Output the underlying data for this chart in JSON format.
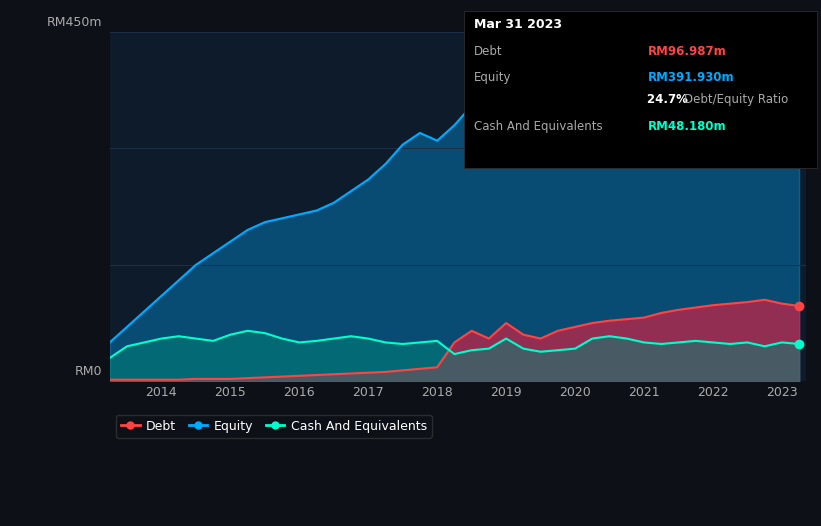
{
  "background_color": "#0d1117",
  "plot_bg_color": "#0d1b2a",
  "grid_color": "#1e3048",
  "ylim": [
    0,
    450
  ],
  "ylabel_rm0": "RM0",
  "ylabel_rm450": "RM450m",
  "years": [
    2013.25,
    2013.5,
    2013.75,
    2014.0,
    2014.25,
    2014.5,
    2014.75,
    2015.0,
    2015.25,
    2015.5,
    2015.75,
    2016.0,
    2016.25,
    2016.5,
    2016.75,
    2017.0,
    2017.25,
    2017.5,
    2017.75,
    2018.0,
    2018.25,
    2018.5,
    2018.75,
    2019.0,
    2019.25,
    2019.5,
    2019.75,
    2020.0,
    2020.25,
    2020.5,
    2020.75,
    2021.0,
    2021.25,
    2021.5,
    2021.75,
    2022.0,
    2022.25,
    2022.5,
    2022.75,
    2023.0,
    2023.25
  ],
  "equity": [
    50,
    70,
    90,
    110,
    130,
    150,
    165,
    180,
    195,
    205,
    210,
    215,
    220,
    230,
    245,
    260,
    280,
    305,
    320,
    310,
    330,
    355,
    360,
    340,
    355,
    365,
    370,
    375,
    380,
    385,
    390,
    410,
    430,
    445,
    440,
    430,
    415,
    410,
    405,
    400,
    392
  ],
  "debt": [
    2,
    2,
    2,
    2,
    2,
    3,
    3,
    3,
    4,
    5,
    6,
    7,
    8,
    9,
    10,
    11,
    12,
    14,
    16,
    18,
    50,
    65,
    55,
    75,
    60,
    55,
    65,
    70,
    75,
    78,
    80,
    82,
    88,
    92,
    95,
    98,
    100,
    102,
    105,
    100,
    97
  ],
  "cash": [
    30,
    45,
    50,
    55,
    58,
    55,
    52,
    60,
    65,
    62,
    55,
    50,
    52,
    55,
    58,
    55,
    50,
    48,
    50,
    52,
    35,
    40,
    42,
    55,
    42,
    38,
    40,
    42,
    55,
    58,
    55,
    50,
    48,
    50,
    52,
    50,
    48,
    50,
    45,
    50,
    48
  ],
  "equity_color": "#00aaff",
  "debt_color": "#ff4444",
  "cash_color": "#00ffcc",
  "equity_fill": "#00aaff",
  "debt_fill": "#cc2244",
  "cash_fill": "#008877",
  "xticks": [
    2014,
    2015,
    2016,
    2017,
    2018,
    2019,
    2020,
    2021,
    2022,
    2023
  ],
  "legend_items": [
    {
      "label": "Debt",
      "color": "#ff4444"
    },
    {
      "label": "Equity",
      "color": "#00aaff"
    },
    {
      "label": "Cash And Equivalents",
      "color": "#00ffcc"
    }
  ],
  "tooltip": {
    "date": "Mar 31 2023",
    "debt_label": "Debt",
    "debt_value": "RM96.987m",
    "debt_color": "#ff4444",
    "equity_label": "Equity",
    "equity_value": "RM391.930m",
    "equity_color": "#00aaff",
    "ratio_value": "24.7%",
    "ratio_label": "Debt/Equity Ratio",
    "ratio_color": "#ffffff",
    "cash_label": "Cash And Equivalents",
    "cash_value": "RM48.180m",
    "cash_color": "#00ffcc",
    "label_color": "#aaaaaa"
  }
}
